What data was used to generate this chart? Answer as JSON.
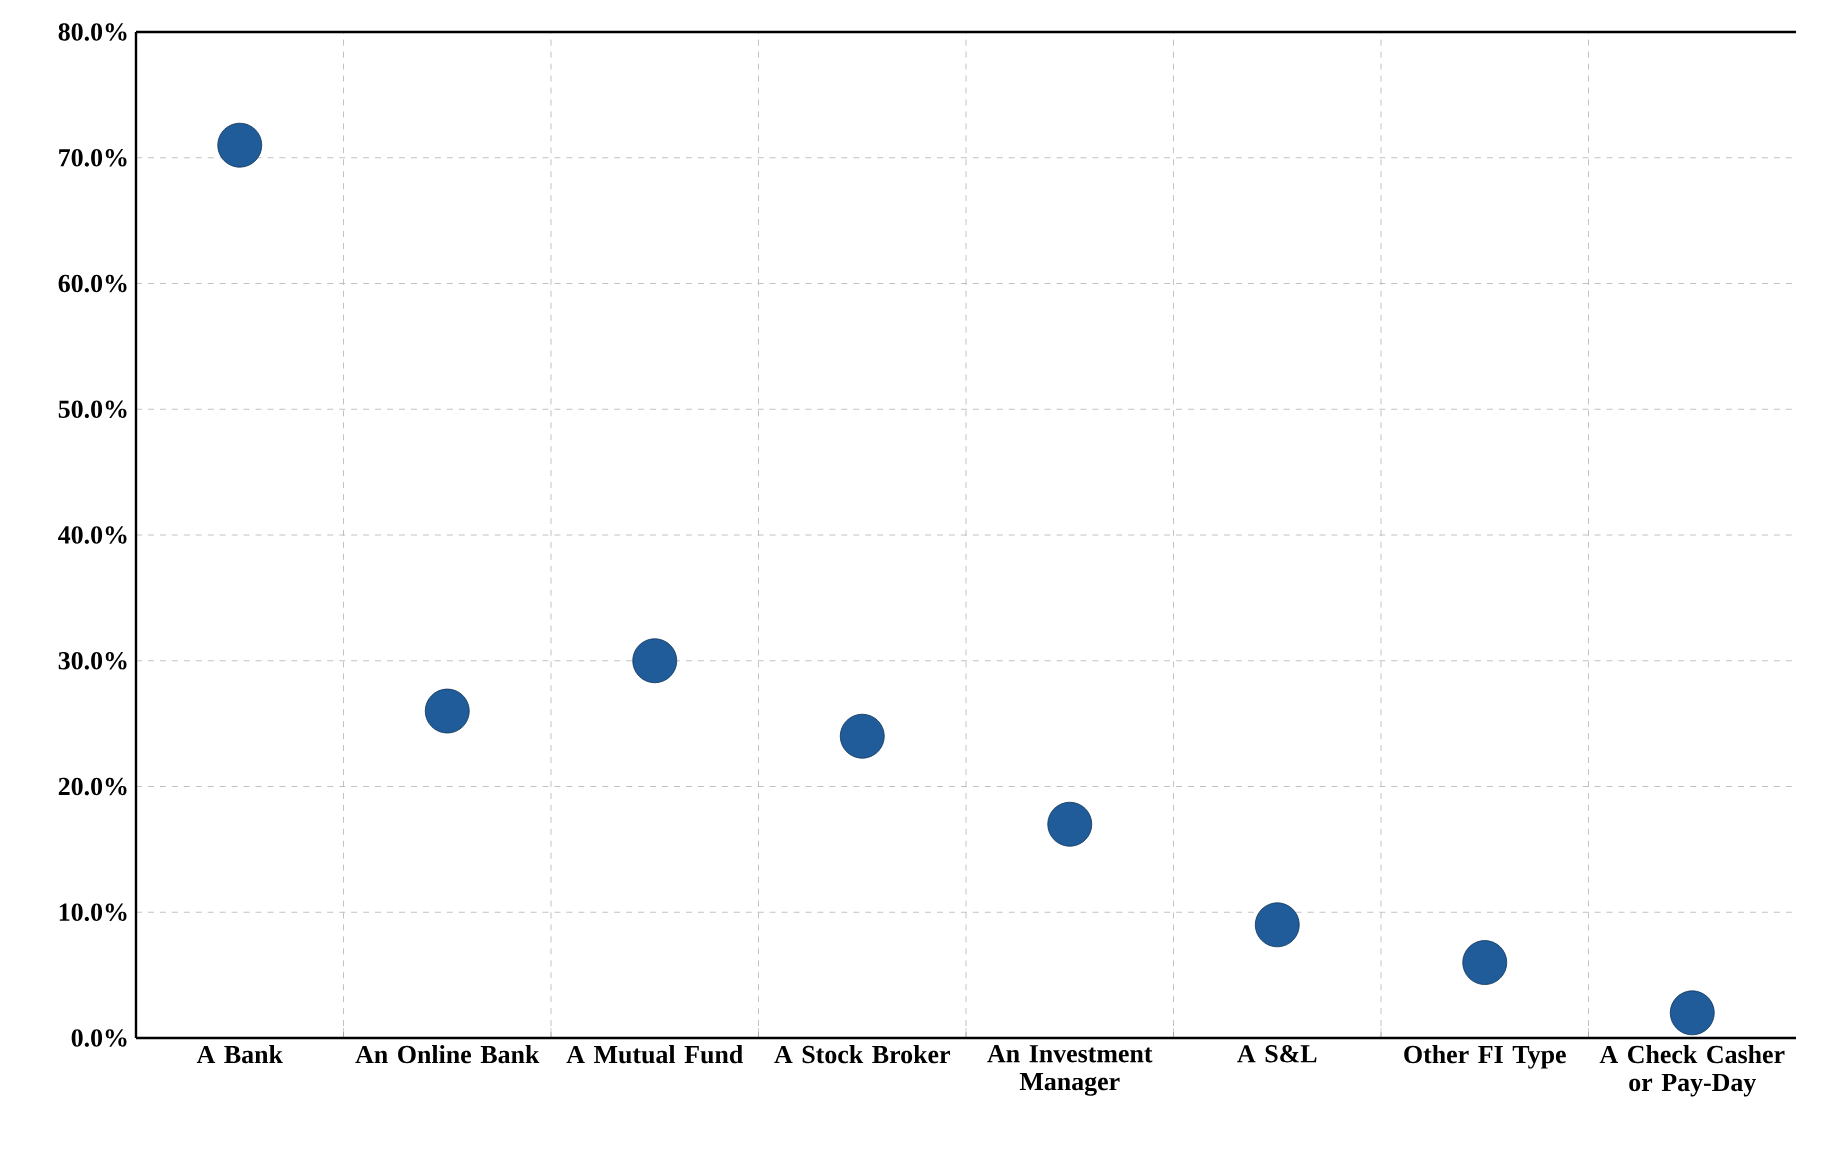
{
  "chart_data": {
    "type": "scatter",
    "categories": [
      "A Bank",
      "An Online Bank",
      "A Mutual Fund",
      "A Stock Broker",
      "An Investment Manager",
      "A S&L",
      "Other FI Type",
      "A Check Casher or Pay-Day"
    ],
    "values": [
      71,
      26,
      30,
      24,
      17,
      9,
      6,
      2
    ],
    "color": "#1f5c99",
    "ylim": [
      0,
      80
    ],
    "yticks": [
      {
        "value": 0,
        "label": "0.0%"
      },
      {
        "value": 10,
        "label": "10.0%"
      },
      {
        "value": 20,
        "label": "20.0%"
      },
      {
        "value": 30,
        "label": "30.0%"
      },
      {
        "value": 40,
        "label": "40.0%"
      },
      {
        "value": 50,
        "label": "50.0%"
      },
      {
        "value": 60,
        "label": "60.0%"
      },
      {
        "value": 70,
        "label": "70.0%"
      },
      {
        "value": 80,
        "label": "80.0%"
      }
    ],
    "grid": true,
    "marker": "circle"
  }
}
